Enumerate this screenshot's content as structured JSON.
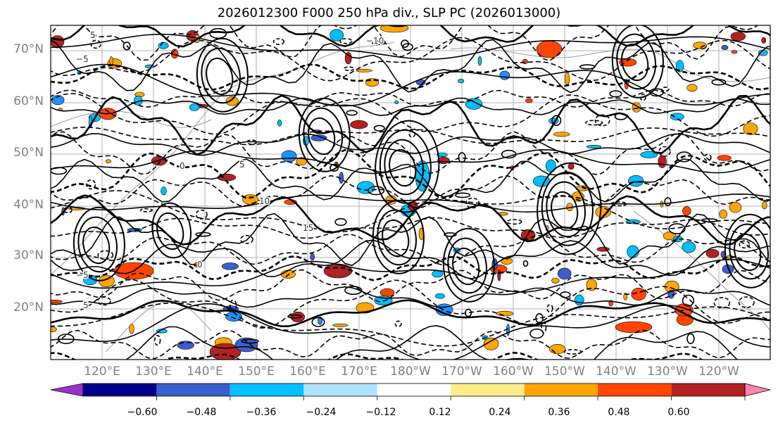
{
  "title": "2026012300 F000 250 hPa div., SLP PC (2026013000)",
  "lat_labels": [
    "70°N",
    "60°N",
    "50°N",
    "40°N",
    "30°N",
    "20°N"
  ],
  "lon_labels": [
    "120°E",
    "130°E",
    "140°E",
    "150°E",
    "160°E",
    "170°E",
    "180°W",
    "170°W",
    "160°W",
    "150°W",
    "140°W",
    "130°W",
    "120°W"
  ],
  "colorbar": {
    "colors": [
      "#9932cc",
      "#00008b",
      "#3a5fcd",
      "#00bfff",
      "#b0e2ff",
      "#ffffff",
      "#ffec8b",
      "#ffa500",
      "#ff4500",
      "#b22222",
      "#ff83aa"
    ],
    "labels": [
      "−0.60",
      "−0.48",
      "−0.36",
      "−0.24",
      "−0.12",
      "0.12",
      "0.24",
      "0.36",
      "0.48",
      "0.60"
    ]
  },
  "contour_labels": [
    "5",
    "−5",
    "0",
    "5",
    "10",
    "15",
    "−5",
    "5",
    "0",
    "−10"
  ]
}
